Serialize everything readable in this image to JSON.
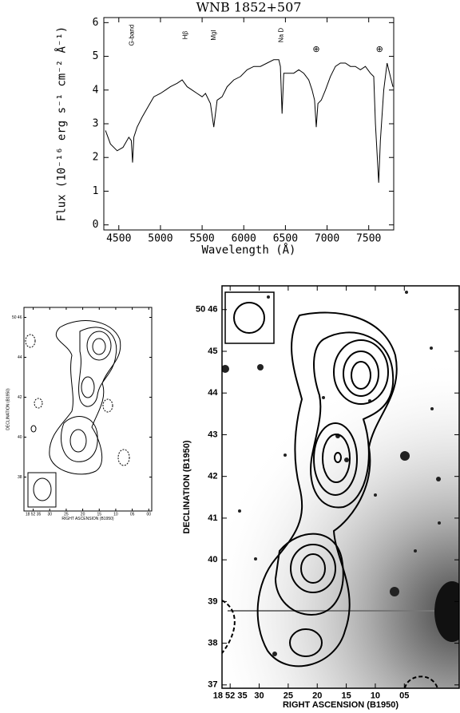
{
  "chart_data": [
    {
      "type": "line",
      "title": "WNB 1852+507",
      "xlabel": "Wavelength (Å)",
      "ylabel": "Flux (10⁻¹⁶ erg s⁻¹ cm⁻² Å⁻¹)",
      "color": "#000000",
      "x": [
        4340,
        4400,
        4480,
        4550,
        4620,
        4650,
        4665,
        4680,
        4720,
        4780,
        4850,
        4920,
        5000,
        5060,
        5120,
        5200,
        5260,
        5320,
        5380,
        5440,
        5500,
        5540,
        5600,
        5640,
        5680,
        5740,
        5800,
        5880,
        5960,
        6040,
        6120,
        6200,
        6280,
        6360,
        6420,
        6440,
        6460,
        6480,
        6540,
        6600,
        6660,
        6720,
        6780,
        6820,
        6850,
        6870,
        6890,
        6930,
        6980,
        7040,
        7100,
        7160,
        7220,
        7280,
        7340,
        7400,
        7460,
        7520,
        7560,
        7580,
        7620,
        7640,
        7680,
        7720,
        7760,
        7790
      ],
      "values": [
        2.8,
        2.4,
        2.2,
        2.3,
        2.6,
        2.5,
        1.85,
        2.6,
        2.9,
        3.2,
        3.5,
        3.8,
        3.9,
        4.0,
        4.1,
        4.2,
        4.3,
        4.1,
        4.0,
        3.9,
        3.8,
        3.9,
        3.6,
        2.9,
        3.7,
        3.8,
        4.1,
        4.3,
        4.4,
        4.6,
        4.7,
        4.7,
        4.8,
        4.9,
        4.9,
        4.7,
        3.3,
        4.5,
        4.5,
        4.5,
        4.6,
        4.5,
        4.3,
        4.0,
        3.7,
        2.9,
        3.6,
        3.7,
        4.0,
        4.4,
        4.7,
        4.8,
        4.8,
        4.7,
        4.7,
        4.6,
        4.7,
        4.5,
        4.4,
        3.0,
        1.25,
        2.5,
        4.0,
        4.8,
        4.4,
        4.1
      ],
      "xlim": [
        4320,
        7800
      ],
      "ylim": [
        -0.15,
        6.15
      ],
      "xticks": [
        4500,
        5000,
        5500,
        6000,
        6500,
        7000,
        7500
      ],
      "yticks": [
        0,
        1,
        2,
        3,
        4,
        5,
        6
      ],
      "annotations": [
        {
          "text": "G-band",
          "x": 4660
        },
        {
          "text": "Hβ",
          "x": 5300
        },
        {
          "text": "MgI",
          "x": 5640
        },
        {
          "text": "Na D",
          "x": 6450
        },
        {
          "text": "⊕",
          "x": 6870
        },
        {
          "text": "⊕",
          "x": 7630
        }
      ]
    },
    {
      "type": "contour",
      "xlabel": "RIGHT ASCENSION (B1950)",
      "ylabel": "DECLINATION (B1950)",
      "xlim": [
        37.8,
        -0.9
      ],
      "ylim": [
        36.3,
        46.5
      ],
      "xticks": [
        {
          "value": 35,
          "label": "18 52 35"
        },
        30,
        25,
        20,
        15,
        10,
        {
          "value": 5,
          "label": "05"
        },
        {
          "value": 0,
          "label": "00"
        }
      ],
      "yticks": [
        {
          "value": 46,
          "label": "50 46"
        },
        44,
        42,
        40,
        38
      ]
    },
    {
      "type": "contour",
      "xlabel": "RIGHT ASCENSION (B1950)",
      "ylabel": "DECLINATION (B1950)",
      "xlim": [
        36.4,
        -4.45
      ],
      "ylim": [
        36.92,
        46.57
      ],
      "xticks": [
        {
          "value": 35,
          "label": "18 52 35"
        },
        30,
        25,
        20,
        15,
        10,
        {
          "value": 5,
          "label": "05"
        }
      ],
      "yticks": [
        {
          "value": 46,
          "label": "50 46"
        },
        45,
        44,
        43,
        42,
        41,
        40,
        39,
        38,
        37
      ]
    }
  ]
}
